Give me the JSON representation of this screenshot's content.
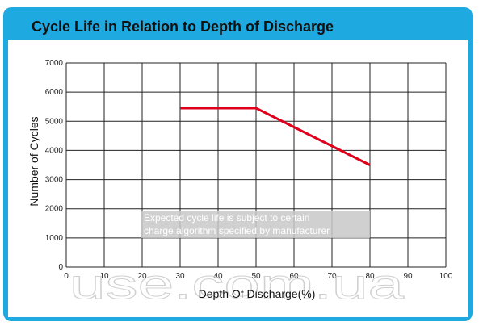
{
  "colors": {
    "frame": "#1fa9e1",
    "line": "#e0001b",
    "grid": "#222222",
    "note_bg": "#c8c8c8"
  },
  "chart_data": {
    "type": "line",
    "title": "Cycle Life in Relation to Depth of Discharge",
    "xlabel": "Depth Of Discharge(%)",
    "ylabel": "Number of Cycles",
    "xlim": [
      0,
      100
    ],
    "ylim": [
      0,
      7000
    ],
    "xticks": [
      0,
      10,
      20,
      30,
      40,
      50,
      60,
      70,
      80,
      90,
      100
    ],
    "yticks": [
      0,
      1000,
      2000,
      3000,
      4000,
      5000,
      6000,
      7000
    ],
    "grid": true,
    "series": [
      {
        "x": [
          30,
          50,
          80
        ],
        "y": [
          5450,
          5450,
          3500
        ]
      }
    ],
    "annotation": [
      "Expected cycle life is subject to certain",
      "charge algorithm specified by manufacturer"
    ]
  },
  "watermark": "use.com.ua"
}
